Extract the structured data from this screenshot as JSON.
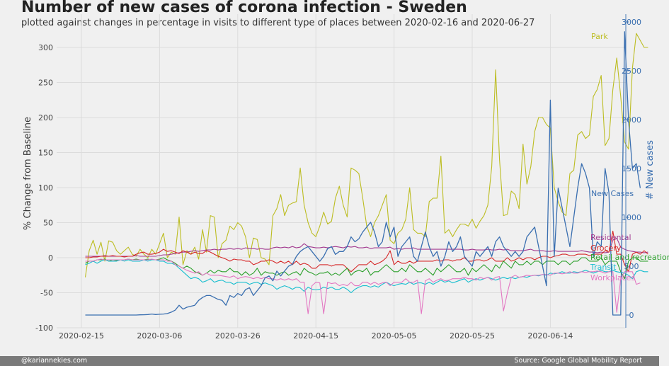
{
  "header": {
    "title": "Number of new cases of corona infection - Sweden",
    "subtitle": "plotted against changes in percentage in visits to different type of places between 2020-02-16 and 2020-06-27"
  },
  "footer": {
    "left": "@kariannekies.com",
    "right": "Source: Google Global Mobility Report"
  },
  "chart_data": {
    "type": "line",
    "ylabel": "% Change from Baseline",
    "y2label": "# New cases",
    "ylim": [
      -100,
      320
    ],
    "y2lim": [
      -50,
      3000
    ],
    "grid": true,
    "yticks": [
      -100,
      -50,
      0,
      50,
      100,
      150,
      200,
      250,
      300
    ],
    "y2ticks": [
      0,
      500,
      1000,
      1500,
      2000,
      2500,
      3000
    ],
    "x_start": "2020-02-15",
    "xticks": [
      "2020-02-15",
      "2020-03-06",
      "2020-03-26",
      "2020-04-15",
      "2020-05-05",
      "2020-05-25",
      "2020-06-14"
    ],
    "series": [
      {
        "name": "Park",
        "color": "#bcbd22",
        "axis": "left",
        "values": [
          -28,
          10,
          25,
          5,
          22,
          -5,
          24,
          22,
          10,
          5,
          10,
          15,
          5,
          2,
          12,
          5,
          0,
          12,
          5,
          20,
          35,
          0,
          8,
          5,
          58,
          -10,
          10,
          5,
          15,
          -2,
          40,
          8,
          60,
          58,
          0,
          20,
          25,
          45,
          40,
          50,
          45,
          30,
          0,
          28,
          26,
          0,
          -2,
          -10,
          60,
          70,
          90,
          60,
          75,
          78,
          80,
          128,
          75,
          50,
          35,
          30,
          45,
          65,
          48,
          52,
          85,
          102,
          75,
          58,
          128,
          125,
          120,
          85,
          45,
          30,
          50,
          60,
          75,
          90,
          25,
          20,
          35,
          40,
          55,
          100,
          40,
          35,
          35,
          30,
          80,
          85,
          85,
          145,
          35,
          40,
          30,
          40,
          48,
          48,
          45,
          55,
          42,
          52,
          60,
          75,
          130,
          268,
          140,
          60,
          62,
          95,
          90,
          70,
          162,
          105,
          130,
          180,
          200,
          200,
          190,
          185,
          100,
          80,
          65,
          60,
          120,
          125,
          175,
          180,
          170,
          175,
          230,
          240,
          260,
          160,
          170,
          240,
          285,
          230,
          165,
          155,
          270,
          320,
          310,
          300,
          300
        ]
      },
      {
        "name": "Residental",
        "color": "#a2398f",
        "axis": "left",
        "values": [
          2,
          2,
          2,
          2,
          2,
          3,
          2,
          2,
          2,
          2,
          2,
          2,
          2,
          3,
          2,
          2,
          2,
          2,
          2,
          3,
          4,
          4,
          5,
          6,
          7,
          8,
          8,
          9,
          10,
          9,
          10,
          11,
          11,
          12,
          11,
          12,
          12,
          13,
          12,
          13,
          12,
          14,
          13,
          13,
          12,
          13,
          12,
          12,
          14,
          15,
          14,
          15,
          14,
          16,
          14,
          15,
          20,
          16,
          15,
          14,
          14,
          15,
          14,
          15,
          16,
          15,
          14,
          16,
          15,
          16,
          14,
          14,
          15,
          13,
          14,
          14,
          14,
          14,
          15,
          12,
          13,
          12,
          13,
          13,
          14,
          12,
          12,
          12,
          12,
          12,
          12,
          12,
          12,
          12,
          12,
          12,
          12,
          11,
          11,
          12,
          11,
          11,
          11,
          12,
          11,
          11,
          12,
          11,
          12,
          10,
          10,
          10,
          10,
          11,
          12,
          10,
          10,
          10,
          9,
          9,
          10,
          9,
          9,
          9,
          9,
          9,
          9,
          10,
          9,
          8,
          8,
          7,
          8,
          7,
          8,
          25,
          28,
          15,
          12,
          10,
          9,
          8,
          8,
          7,
          8
        ]
      },
      {
        "name": "Grocery",
        "color": "#d62728",
        "axis": "left",
        "values": [
          0,
          0,
          1,
          1,
          2,
          2,
          2,
          3,
          2,
          2,
          1,
          2,
          2,
          5,
          7,
          8,
          5,
          5,
          6,
          8,
          12,
          9,
          10,
          8,
          6,
          10,
          8,
          5,
          8,
          6,
          6,
          10,
          8,
          5,
          2,
          0,
          -2,
          -5,
          -2,
          -3,
          -3,
          -5,
          -5,
          -10,
          -8,
          -5,
          -5,
          -3,
          -5,
          -8,
          -5,
          -8,
          -5,
          -10,
          -5,
          -10,
          -8,
          -10,
          -15,
          -15,
          -10,
          -10,
          -10,
          -12,
          -10,
          -10,
          -10,
          -15,
          -20,
          -15,
          -10,
          -10,
          -10,
          -5,
          -10,
          -8,
          -5,
          0,
          10,
          -10,
          -5,
          -8,
          -8,
          -5,
          -8,
          -5,
          -5,
          -5,
          -5,
          -5,
          -3,
          -5,
          -3,
          -3,
          -5,
          -3,
          -3,
          0,
          -5,
          -5,
          -3,
          -3,
          -5,
          -3,
          0,
          -5,
          -5,
          -5,
          0,
          -5,
          -3,
          0,
          -3,
          0,
          0,
          -3,
          0,
          2,
          2,
          0,
          2,
          3,
          5,
          5,
          3,
          3,
          5,
          5,
          5,
          3,
          5,
          5,
          5,
          10,
          8,
          38,
          5,
          5,
          -10,
          -20,
          5,
          8,
          5,
          10,
          5
        ]
      },
      {
        "name": "Retail and recreation",
        "color": "#2ca02c",
        "axis": "left",
        "values": [
          -8,
          -5,
          -5,
          -3,
          -3,
          -2,
          -5,
          -3,
          -4,
          -3,
          -3,
          -2,
          -3,
          -2,
          -3,
          -3,
          -2,
          -3,
          -3,
          -2,
          0,
          -3,
          -5,
          -8,
          -12,
          -15,
          -12,
          -15,
          -20,
          -22,
          -25,
          -22,
          -18,
          -22,
          -18,
          -20,
          -20,
          -15,
          -20,
          -20,
          -25,
          -20,
          -25,
          -22,
          -15,
          -25,
          -20,
          -22,
          -22,
          -25,
          -22,
          -20,
          -25,
          -22,
          -20,
          -25,
          -15,
          -20,
          -22,
          -25,
          -22,
          -22,
          -20,
          -25,
          -22,
          -25,
          -20,
          -15,
          -25,
          -20,
          -18,
          -20,
          -15,
          -25,
          -20,
          -20,
          -15,
          -10,
          -15,
          -20,
          -20,
          -15,
          -20,
          -10,
          -15,
          -20,
          -20,
          -15,
          -20,
          -25,
          -15,
          -20,
          -15,
          -10,
          -15,
          -20,
          -20,
          -15,
          -25,
          -15,
          -20,
          -15,
          -10,
          -15,
          -20,
          -10,
          -15,
          -5,
          -10,
          -15,
          -5,
          -10,
          -10,
          -5,
          -10,
          -5,
          -5,
          -10,
          -5,
          -5,
          -5,
          -10,
          -5,
          -5,
          -10,
          -5,
          -5,
          0,
          0,
          -5,
          -5,
          -5,
          0,
          -10,
          -5,
          -5,
          -5,
          -20,
          -30,
          -5,
          0,
          0,
          -5,
          -5,
          -5
        ]
      },
      {
        "name": "Transit",
        "color": "#17becf",
        "axis": "left",
        "values": [
          -10,
          -8,
          -5,
          -8,
          -5,
          -3,
          -5,
          -5,
          -5,
          -3,
          -5,
          -3,
          -5,
          -5,
          -5,
          -3,
          -5,
          -3,
          -3,
          -5,
          -5,
          -8,
          -8,
          -10,
          -15,
          -20,
          -25,
          -30,
          -28,
          -30,
          -35,
          -33,
          -30,
          -35,
          -33,
          -32,
          -35,
          -35,
          -38,
          -35,
          -35,
          -35,
          -38,
          -36,
          -35,
          -38,
          -36,
          -38,
          -40,
          -45,
          -42,
          -40,
          -42,
          -45,
          -42,
          -43,
          -48,
          -42,
          -45,
          -46,
          -45,
          -42,
          -44,
          -42,
          -45,
          -45,
          -42,
          -45,
          -50,
          -45,
          -42,
          -40,
          -40,
          -42,
          -40,
          -42,
          -38,
          -35,
          -38,
          -40,
          -38,
          -37,
          -38,
          -35,
          -38,
          -36,
          -36,
          -38,
          -35,
          -38,
          -35,
          -32,
          -35,
          -33,
          -36,
          -34,
          -32,
          -30,
          -35,
          -32,
          -30,
          -32,
          -30,
          -28,
          -30,
          -32,
          -30,
          -28,
          -30,
          -28,
          -30,
          -28,
          -27,
          -28,
          -26,
          -25,
          -26,
          -24,
          -25,
          -22,
          -23,
          -22,
          -20,
          -22,
          -22,
          -20,
          -21,
          -20,
          -18,
          -20,
          -22,
          -20,
          -18,
          -20,
          -20,
          -18,
          -20,
          -21,
          -22,
          -25,
          -30,
          -20,
          -18,
          -20,
          -20
        ]
      },
      {
        "name": "Workplaces",
        "color": "#e377c2",
        "axis": "left",
        "values": [
          -5,
          -5,
          -5,
          -3,
          -2,
          -3,
          -3,
          -3,
          -3,
          -3,
          -3,
          -2,
          -3,
          -3,
          -3,
          -3,
          -3,
          -2,
          -3,
          -3,
          -3,
          -5,
          -5,
          -10,
          -12,
          -15,
          -18,
          -20,
          -22,
          -20,
          -25,
          -22,
          -25,
          -25,
          -25,
          -26,
          -27,
          -28,
          -26,
          -30,
          -28,
          -27,
          -28,
          -30,
          -28,
          -30,
          -28,
          -30,
          -30,
          -32,
          -30,
          -32,
          -30,
          -32,
          -30,
          -35,
          -35,
          -80,
          -40,
          -35,
          -36,
          -80,
          -35,
          -37,
          -36,
          -40,
          -38,
          -40,
          -35,
          -40,
          -40,
          -35,
          -35,
          -38,
          -35,
          -38,
          -36,
          -35,
          -40,
          -35,
          -35,
          -35,
          -30,
          -35,
          -35,
          -32,
          -80,
          -33,
          -30,
          -35,
          -32,
          -30,
          -33,
          -32,
          -30,
          -30,
          -30,
          -28,
          -30,
          -30,
          -32,
          -28,
          -30,
          -28,
          -32,
          -28,
          -27,
          -76,
          -50,
          -28,
          -25,
          -28,
          -27,
          -25,
          -26,
          -25,
          -25,
          -24,
          -24,
          -25,
          -22,
          -22,
          -23,
          -22,
          -20,
          -22,
          -22,
          -20,
          -21,
          -20,
          -20,
          -19,
          -20,
          -22,
          -20,
          -20,
          -78,
          -30,
          -20,
          -20,
          -20,
          -38,
          -36
        ]
      },
      {
        "name": "New Cases",
        "color": "#3a6fb0",
        "axis": "right",
        "values": [
          0,
          0,
          0,
          0,
          0,
          0,
          0,
          0,
          0,
          0,
          0,
          0,
          0,
          0,
          2,
          3,
          5,
          10,
          5,
          8,
          10,
          15,
          30,
          50,
          100,
          60,
          80,
          90,
          100,
          150,
          180,
          200,
          200,
          180,
          160,
          150,
          100,
          200,
          180,
          220,
          200,
          260,
          280,
          200,
          250,
          300,
          380,
          400,
          350,
          450,
          400,
          450,
          500,
          520,
          600,
          650,
          680,
          700,
          650,
          600,
          550,
          600,
          680,
          700,
          620,
          650,
          650,
          700,
          800,
          750,
          780,
          850,
          900,
          950,
          850,
          700,
          750,
          950,
          800,
          900,
          600,
          700,
          750,
          800,
          600,
          550,
          700,
          850,
          700,
          600,
          650,
          500,
          600,
          750,
          650,
          700,
          800,
          600,
          550,
          500,
          650,
          600,
          650,
          700,
          600,
          750,
          800,
          700,
          650,
          600,
          650,
          600,
          650,
          800,
          850,
          900,
          700,
          500,
          300,
          2200,
          600,
          1300,
          1100,
          900,
          700,
          1000,
          1300,
          1550,
          1450,
          1300,
          600,
          750,
          700,
          1500,
          1250,
          0,
          0,
          0,
          2900,
          2000,
          1500,
          1550,
          1300
        ]
      }
    ]
  }
}
